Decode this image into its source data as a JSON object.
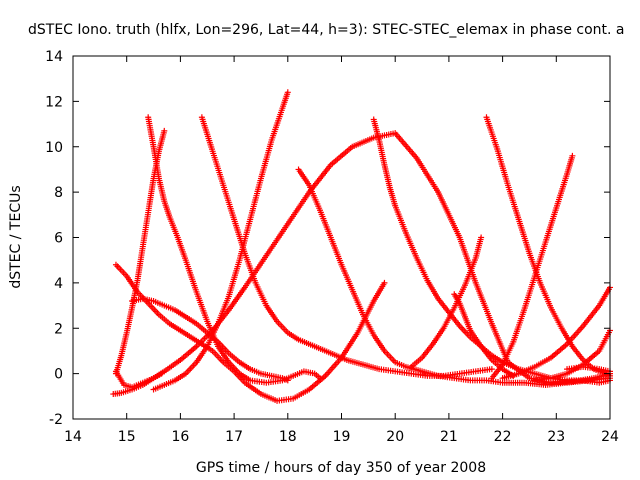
{
  "chart_data": {
    "type": "scatter",
    "title": "dSTEC Iono. truth (hlfx, Lon=296, Lat=44, h=3): STEC-STEC_elemax in phase cont. a",
    "xlabel": "GPS time / hours of day 350 of year 2008",
    "ylabel": "dSTEC  / TECUs",
    "xlim": [
      14,
      24
    ],
    "ylim": [
      -2,
      14
    ],
    "xticks": [
      14,
      15,
      16,
      17,
      18,
      19,
      20,
      21,
      22,
      23,
      24
    ],
    "yticks": [
      -2,
      0,
      2,
      4,
      6,
      8,
      10,
      12,
      14
    ],
    "grid": false,
    "marker": "+",
    "color": "#ff0000",
    "series": [
      {
        "x": [
          14.75,
          14.9,
          15.1,
          15.3,
          15.5,
          15.7,
          16.0,
          16.3,
          16.6,
          16.9,
          17.2,
          17.6,
          18.0,
          18.4,
          18.8,
          19.2,
          19.6,
          20.0,
          20.4,
          20.8,
          21.2,
          21.5,
          21.8,
          22.1,
          22.5,
          22.9,
          23.3,
          23.7,
          24.0
        ],
        "y": [
          -0.9,
          -0.85,
          -0.7,
          -0.5,
          -0.2,
          0.1,
          0.6,
          1.2,
          1.9,
          2.8,
          3.8,
          5.2,
          6.6,
          8.0,
          9.2,
          10.0,
          10.4,
          10.6,
          9.5,
          8.0,
          6.0,
          4.0,
          2.2,
          0.5,
          -0.2,
          -0.4,
          -0.35,
          -0.2,
          0.0
        ]
      },
      {
        "x": [
          14.8,
          14.95,
          15.1,
          15.3,
          15.5,
          15.65
        ],
        "y": [
          0.1,
          -0.5,
          -0.6,
          -0.4,
          -0.2,
          0.0
        ]
      },
      {
        "x": [
          14.8,
          14.9,
          15.0,
          15.1,
          15.2,
          15.3,
          15.4,
          15.5,
          15.6,
          15.7
        ],
        "y": [
          0.0,
          0.8,
          1.8,
          2.9,
          4.1,
          5.6,
          7.1,
          8.6,
          9.8,
          10.7
        ]
      },
      {
        "x": [
          14.8,
          15.0,
          15.2,
          15.4,
          15.6,
          15.8,
          16.0,
          16.2,
          16.4,
          16.6,
          16.8,
          17.0,
          17.2,
          17.5,
          17.8,
          18.1,
          18.4,
          18.7,
          19.0,
          19.3,
          19.6,
          19.8
        ],
        "y": [
          4.8,
          4.3,
          3.6,
          3.1,
          2.6,
          2.2,
          1.9,
          1.6,
          1.3,
          1.0,
          0.5,
          0.1,
          -0.4,
          -0.9,
          -1.2,
          -1.1,
          -0.7,
          -0.1,
          0.7,
          1.8,
          3.2,
          4.0
        ]
      },
      {
        "x": [
          15.1,
          15.3,
          15.5,
          15.7,
          15.9,
          16.1,
          16.3,
          16.5,
          16.7,
          16.9,
          17.1,
          17.3,
          17.5,
          17.7,
          17.9,
          18.0
        ],
        "y": [
          3.2,
          3.3,
          3.2,
          3.0,
          2.8,
          2.5,
          2.2,
          1.8,
          1.4,
          0.9,
          0.5,
          0.2,
          0.0,
          -0.1,
          -0.2,
          -0.3
        ]
      },
      {
        "x": [
          15.4,
          15.5,
          15.6,
          15.7,
          15.8,
          15.95,
          16.1,
          16.3,
          16.5,
          16.7,
          16.9,
          17.1,
          17.3,
          17.6,
          17.9,
          18.1,
          18.3,
          18.5,
          18.6
        ],
        "y": [
          11.3,
          10.0,
          8.6,
          7.6,
          6.9,
          6.0,
          5.0,
          3.6,
          2.3,
          1.2,
          0.5,
          0.0,
          -0.3,
          -0.4,
          -0.3,
          -0.1,
          0.1,
          0.0,
          -0.2
        ]
      },
      {
        "x": [
          15.5,
          15.7,
          15.9,
          16.1,
          16.3,
          16.5,
          16.7,
          16.9,
          17.1,
          17.3,
          17.5,
          17.7,
          17.9,
          18.0
        ],
        "y": [
          -0.7,
          -0.5,
          -0.3,
          0.0,
          0.5,
          1.2,
          2.2,
          3.4,
          5.0,
          6.8,
          8.6,
          10.3,
          11.7,
          12.4
        ]
      },
      {
        "x": [
          16.4,
          16.6,
          16.8,
          17.0,
          17.2,
          17.4,
          17.6,
          17.8,
          18.0,
          18.2,
          18.5,
          18.8,
          19.1,
          19.4,
          19.7,
          20.0,
          20.3,
          20.6,
          20.9,
          21.2,
          21.5,
          21.8
        ],
        "y": [
          11.3,
          9.8,
          8.3,
          6.8,
          5.3,
          4.0,
          3.0,
          2.3,
          1.8,
          1.5,
          1.2,
          0.9,
          0.6,
          0.4,
          0.2,
          0.1,
          0.0,
          -0.1,
          -0.1,
          0.0,
          0.1,
          0.2
        ]
      },
      {
        "x": [
          18.2,
          18.4,
          18.6,
          18.8,
          19.0,
          19.2,
          19.4,
          19.6,
          19.8,
          20.0,
          20.2,
          20.5,
          20.8,
          21.1,
          21.4,
          21.7,
          22.0,
          22.4,
          22.8,
          23.2,
          23.6,
          24.0
        ],
        "y": [
          9.0,
          8.3,
          7.2,
          6.0,
          4.8,
          3.7,
          2.6,
          1.7,
          1.0,
          0.5,
          0.3,
          0.1,
          -0.1,
          -0.2,
          -0.3,
          -0.3,
          -0.4,
          -0.4,
          -0.5,
          -0.4,
          -0.3,
          -0.2
        ]
      },
      {
        "x": [
          19.6,
          19.7,
          19.8,
          19.9,
          20.0,
          20.2,
          20.4,
          20.6,
          20.8,
          21.0,
          21.2,
          21.4,
          21.6,
          21.8,
          22.0,
          22.3,
          22.6,
          22.9,
          23.2,
          23.5,
          23.8,
          24.0
        ],
        "y": [
          11.2,
          10.3,
          9.2,
          8.2,
          7.4,
          6.2,
          5.1,
          4.1,
          3.3,
          2.7,
          2.1,
          1.6,
          1.2,
          0.8,
          0.5,
          0.2,
          0.0,
          -0.2,
          -0.3,
          -0.3,
          -0.4,
          -0.3
        ]
      },
      {
        "x": [
          20.3,
          20.5,
          20.7,
          20.9,
          21.1,
          21.3,
          21.5,
          21.6
        ],
        "y": [
          0.3,
          0.7,
          1.3,
          2.0,
          2.9,
          3.9,
          5.1,
          6.0
        ]
      },
      {
        "x": [
          21.1,
          21.2,
          21.3,
          21.4,
          21.6,
          21.8,
          22.0,
          22.2
        ],
        "y": [
          3.5,
          3.1,
          2.5,
          1.9,
          1.2,
          0.6,
          0.2,
          -0.1
        ]
      },
      {
        "x": [
          21.7,
          21.9,
          22.1,
          22.3,
          22.5,
          22.7,
          22.9,
          23.1,
          23.3,
          23.5,
          23.7,
          23.9,
          24.0
        ],
        "y": [
          11.3,
          9.9,
          8.3,
          6.8,
          5.3,
          4.0,
          2.9,
          2.0,
          1.2,
          0.6,
          0.2,
          0.0,
          -0.1
        ]
      },
      {
        "x": [
          21.8,
          22.0,
          22.2,
          22.4,
          22.6,
          22.8,
          23.0,
          23.2,
          23.3
        ],
        "y": [
          -0.2,
          0.4,
          1.4,
          2.8,
          4.3,
          5.8,
          7.3,
          8.8,
          9.6
        ]
      },
      {
        "x": [
          22.0,
          22.3,
          22.6,
          22.9,
          23.2,
          23.5,
          23.8,
          24.0
        ],
        "y": [
          -0.2,
          0.0,
          0.3,
          0.7,
          1.3,
          2.1,
          3.0,
          3.8
        ]
      },
      {
        "x": [
          22.6,
          22.9,
          23.2,
          23.5,
          23.8,
          24.0
        ],
        "y": [
          -0.3,
          -0.2,
          0.0,
          0.4,
          1.0,
          1.9
        ]
      },
      {
        "x": [
          23.2,
          23.5,
          23.8,
          24.0
        ],
        "y": [
          0.2,
          0.3,
          0.2,
          0.1
        ]
      }
    ]
  }
}
